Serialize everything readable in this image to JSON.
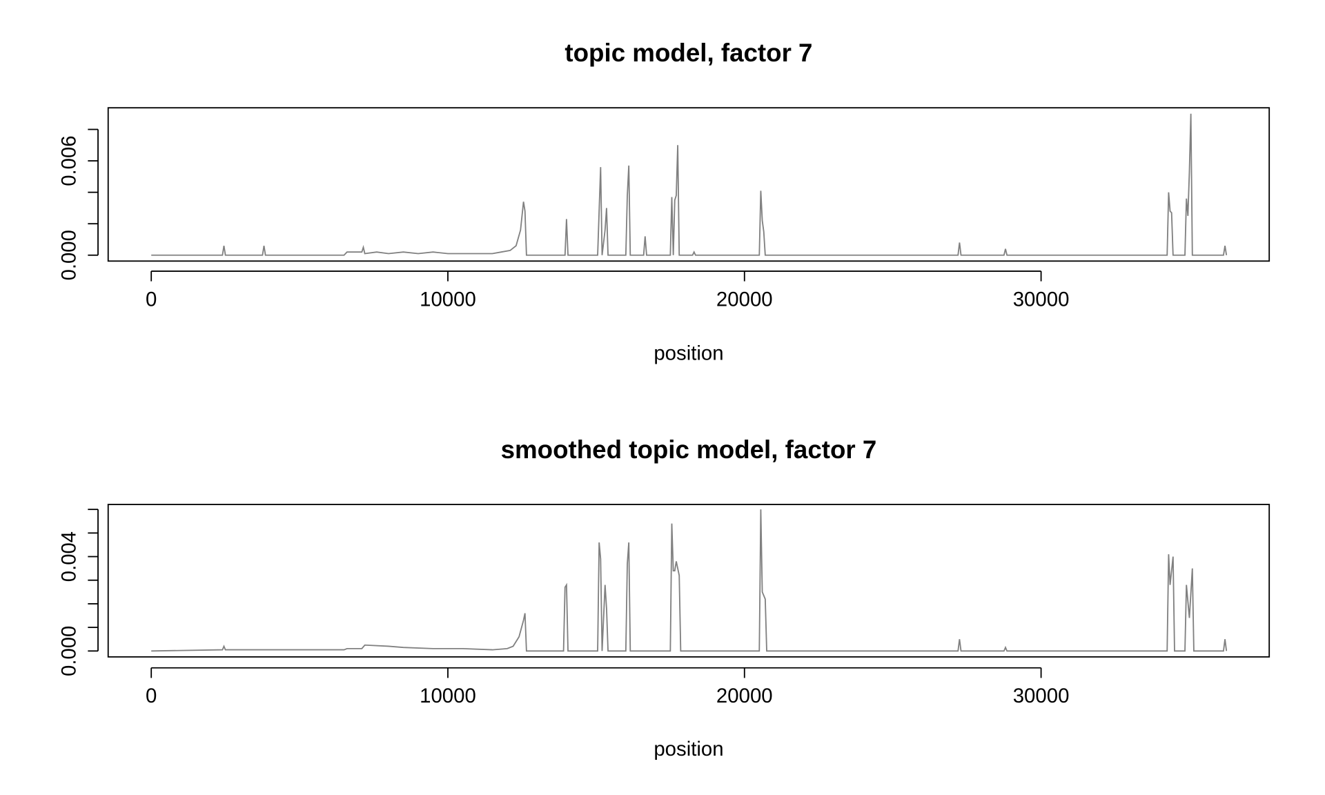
{
  "chart_data": [
    {
      "type": "line",
      "title": "topic model, factor 7",
      "x_label": "position",
      "xlim": [
        -1453,
        37692
      ],
      "ylim": [
        -0.000375,
        0.009375
      ],
      "xticks": [
        0,
        10000,
        20000,
        30000
      ],
      "yticks": [
        {
          "value": 0,
          "label": "0.000"
        },
        {
          "value": 0.002,
          "label": null
        },
        {
          "value": 0.004,
          "label": null
        },
        {
          "value": 0.006,
          "label": "0.006"
        },
        {
          "value": 0.008,
          "label": null
        }
      ],
      "series": [
        {
          "color": "#808080",
          "x": [
            0,
            2400,
            2450,
            2500,
            3750,
            3800,
            3850,
            6500,
            6600,
            7100,
            7150,
            7200,
            7600,
            8000,
            8500,
            9000,
            9500,
            10000,
            10500,
            11000,
            11500,
            11800,
            12100,
            12300,
            12450,
            12550,
            12600,
            12650,
            13950,
            14000,
            14050,
            15050,
            15100,
            15150,
            15200,
            15300,
            15350,
            15400,
            16000,
            16050,
            16100,
            16150,
            16600,
            16650,
            16700,
            17500,
            17550,
            17600,
            17650,
            17700,
            17750,
            17800,
            18250,
            18300,
            18350,
            20500,
            20550,
            20600,
            20650,
            20700,
            27200,
            27250,
            27300,
            28750,
            28800,
            28850,
            34250,
            34300,
            34350,
            34400,
            34450,
            34850,
            34900,
            34950,
            35000,
            35050,
            35100,
            36150,
            36200,
            36250
          ],
          "values": [
            0,
            0,
            0.0006,
            0,
            0,
            0.0006,
            0,
            0,
            0.0002,
            0.0002,
            0.0005,
            0.0001,
            0.0002,
            0.0001,
            0.0002,
            0.0001,
            0.0002,
            0.0001,
            0.0001,
            0.0001,
            0.0001,
            0.0002,
            0.0003,
            0.0006,
            0.0016,
            0.0034,
            0.0028,
            0,
            0,
            0.0023,
            0,
            0,
            0.0028,
            0.0056,
            0,
            0.0016,
            0.003,
            0,
            0,
            0.0038,
            0.0057,
            0,
            0,
            0.0012,
            0,
            0,
            0.0037,
            0,
            0.0035,
            0.0038,
            0.007,
            0,
            0,
            0.0002,
            0,
            0,
            0.0041,
            0.0022,
            0.0015,
            0,
            0,
            0.0008,
            0,
            0,
            0.0004,
            0,
            0,
            0.004,
            0.0028,
            0.0027,
            0,
            0,
            0.0036,
            0.0025,
            0.0053,
            0.009,
            0,
            0,
            0.0006,
            0
          ]
        }
      ]
    },
    {
      "type": "line",
      "title": "smoothed topic model, factor 7",
      "x_label": "position",
      "xlim": [
        -1453,
        37692
      ],
      "ylim": [
        -0.00025,
        0.00621
      ],
      "xticks": [
        0,
        10000,
        20000,
        30000
      ],
      "yticks": [
        {
          "value": 0,
          "label": "0.000"
        },
        {
          "value": 0.001,
          "label": null
        },
        {
          "value": 0.002,
          "label": null
        },
        {
          "value": 0.003,
          "label": null
        },
        {
          "value": 0.004,
          "label": "0.004"
        },
        {
          "value": 0.005,
          "label": null
        },
        {
          "value": 0.006,
          "label": null
        }
      ],
      "series": [
        {
          "color": "#808080",
          "x": [
            0,
            2400,
            2450,
            2500,
            6500,
            6600,
            7100,
            7200,
            8000,
            8500,
            9500,
            10500,
            11500,
            12000,
            12200,
            12400,
            12550,
            12600,
            12650,
            13900,
            13950,
            14000,
            14050,
            15050,
            15100,
            15150,
            15200,
            15300,
            15350,
            15400,
            16000,
            16050,
            16100,
            16150,
            17500,
            17550,
            17600,
            17650,
            17700,
            17800,
            17850,
            20500,
            20550,
            20600,
            20700,
            20750,
            27200,
            27250,
            27300,
            28750,
            28800,
            28850,
            34250,
            34300,
            34350,
            34450,
            34500,
            34850,
            34900,
            35000,
            35100,
            35150,
            36150,
            36200,
            36250
          ],
          "values": [
            0,
            5e-05,
            0.0002,
            5e-05,
            5e-05,
            0.0001,
            0.0001,
            0.00025,
            0.0002,
            0.00015,
            0.0001,
            0.0001,
            5e-05,
            0.0001,
            0.0002,
            0.0006,
            0.0013,
            0.0016,
            0,
            0,
            0.0027,
            0.0028,
            0,
            0,
            0.0046,
            0.0039,
            0,
            0.0028,
            0.0018,
            0,
            0,
            0.0037,
            0.0046,
            0,
            0,
            0.0054,
            0.0034,
            0.0034,
            0.0038,
            0.0032,
            0,
            0,
            0.006,
            0.0025,
            0.0022,
            0,
            0,
            0.0005,
            0,
            0,
            0.00015,
            0,
            0,
            0.0041,
            0.0028,
            0.004,
            0,
            0,
            0.0028,
            0.0014,
            0.0035,
            0,
            0,
            0.0005,
            0
          ]
        }
      ]
    }
  ]
}
